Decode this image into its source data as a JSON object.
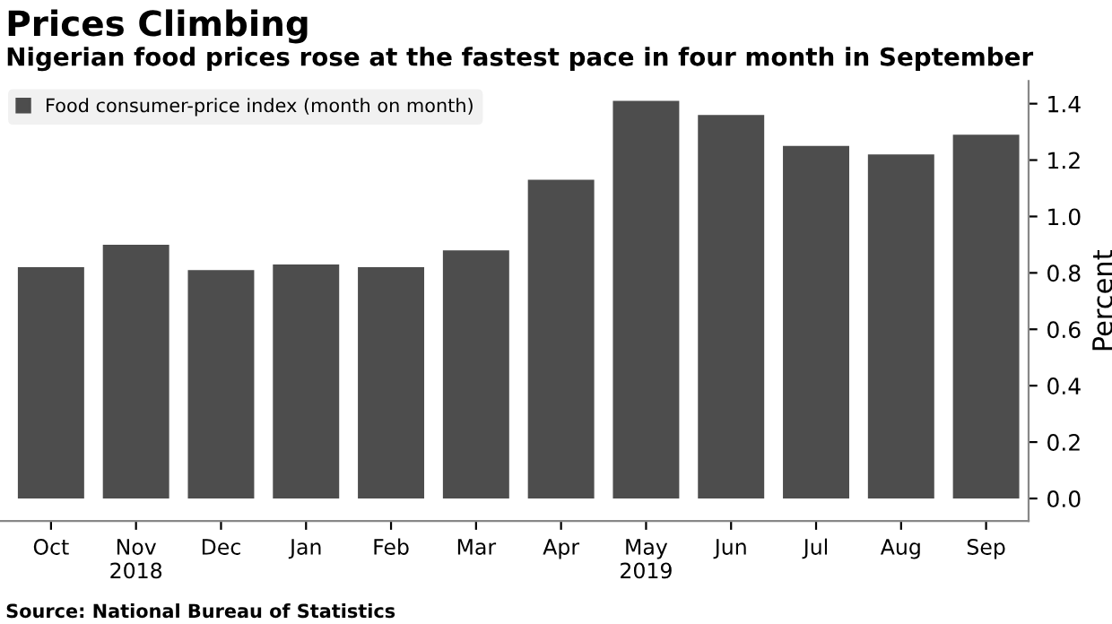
{
  "chart_data": {
    "type": "bar",
    "title": "Prices Climbing",
    "subtitle": "Nigerian food prices rose at the fastest pace in four month in September",
    "ylabel": "Percent",
    "categories": [
      "Oct",
      "Nov\n2018",
      "Dec",
      "Jan",
      "Feb",
      "Mar",
      "Apr",
      "May\n2019",
      "Jun",
      "Jul",
      "Aug",
      "Sep"
    ],
    "series": [
      {
        "name": "Food consumer-price index (month on month)",
        "color": "#4d4d4d",
        "values": [
          0.82,
          0.9,
          0.81,
          0.83,
          0.82,
          0.88,
          1.13,
          1.41,
          1.36,
          1.25,
          1.22,
          1.29
        ]
      }
    ],
    "ylim": [
      -0.08,
      1.48
    ],
    "yticks": [
      {
        "value": 0,
        "label": "0.0"
      },
      0.2,
      0.4,
      0.6,
      0.8,
      {
        "value": 1,
        "label": "1.0"
      },
      1.2,
      1.4
    ],
    "grid": false,
    "legend": "top left",
    "annotations": [
      "Source: National Bureau of Statistics"
    ]
  }
}
